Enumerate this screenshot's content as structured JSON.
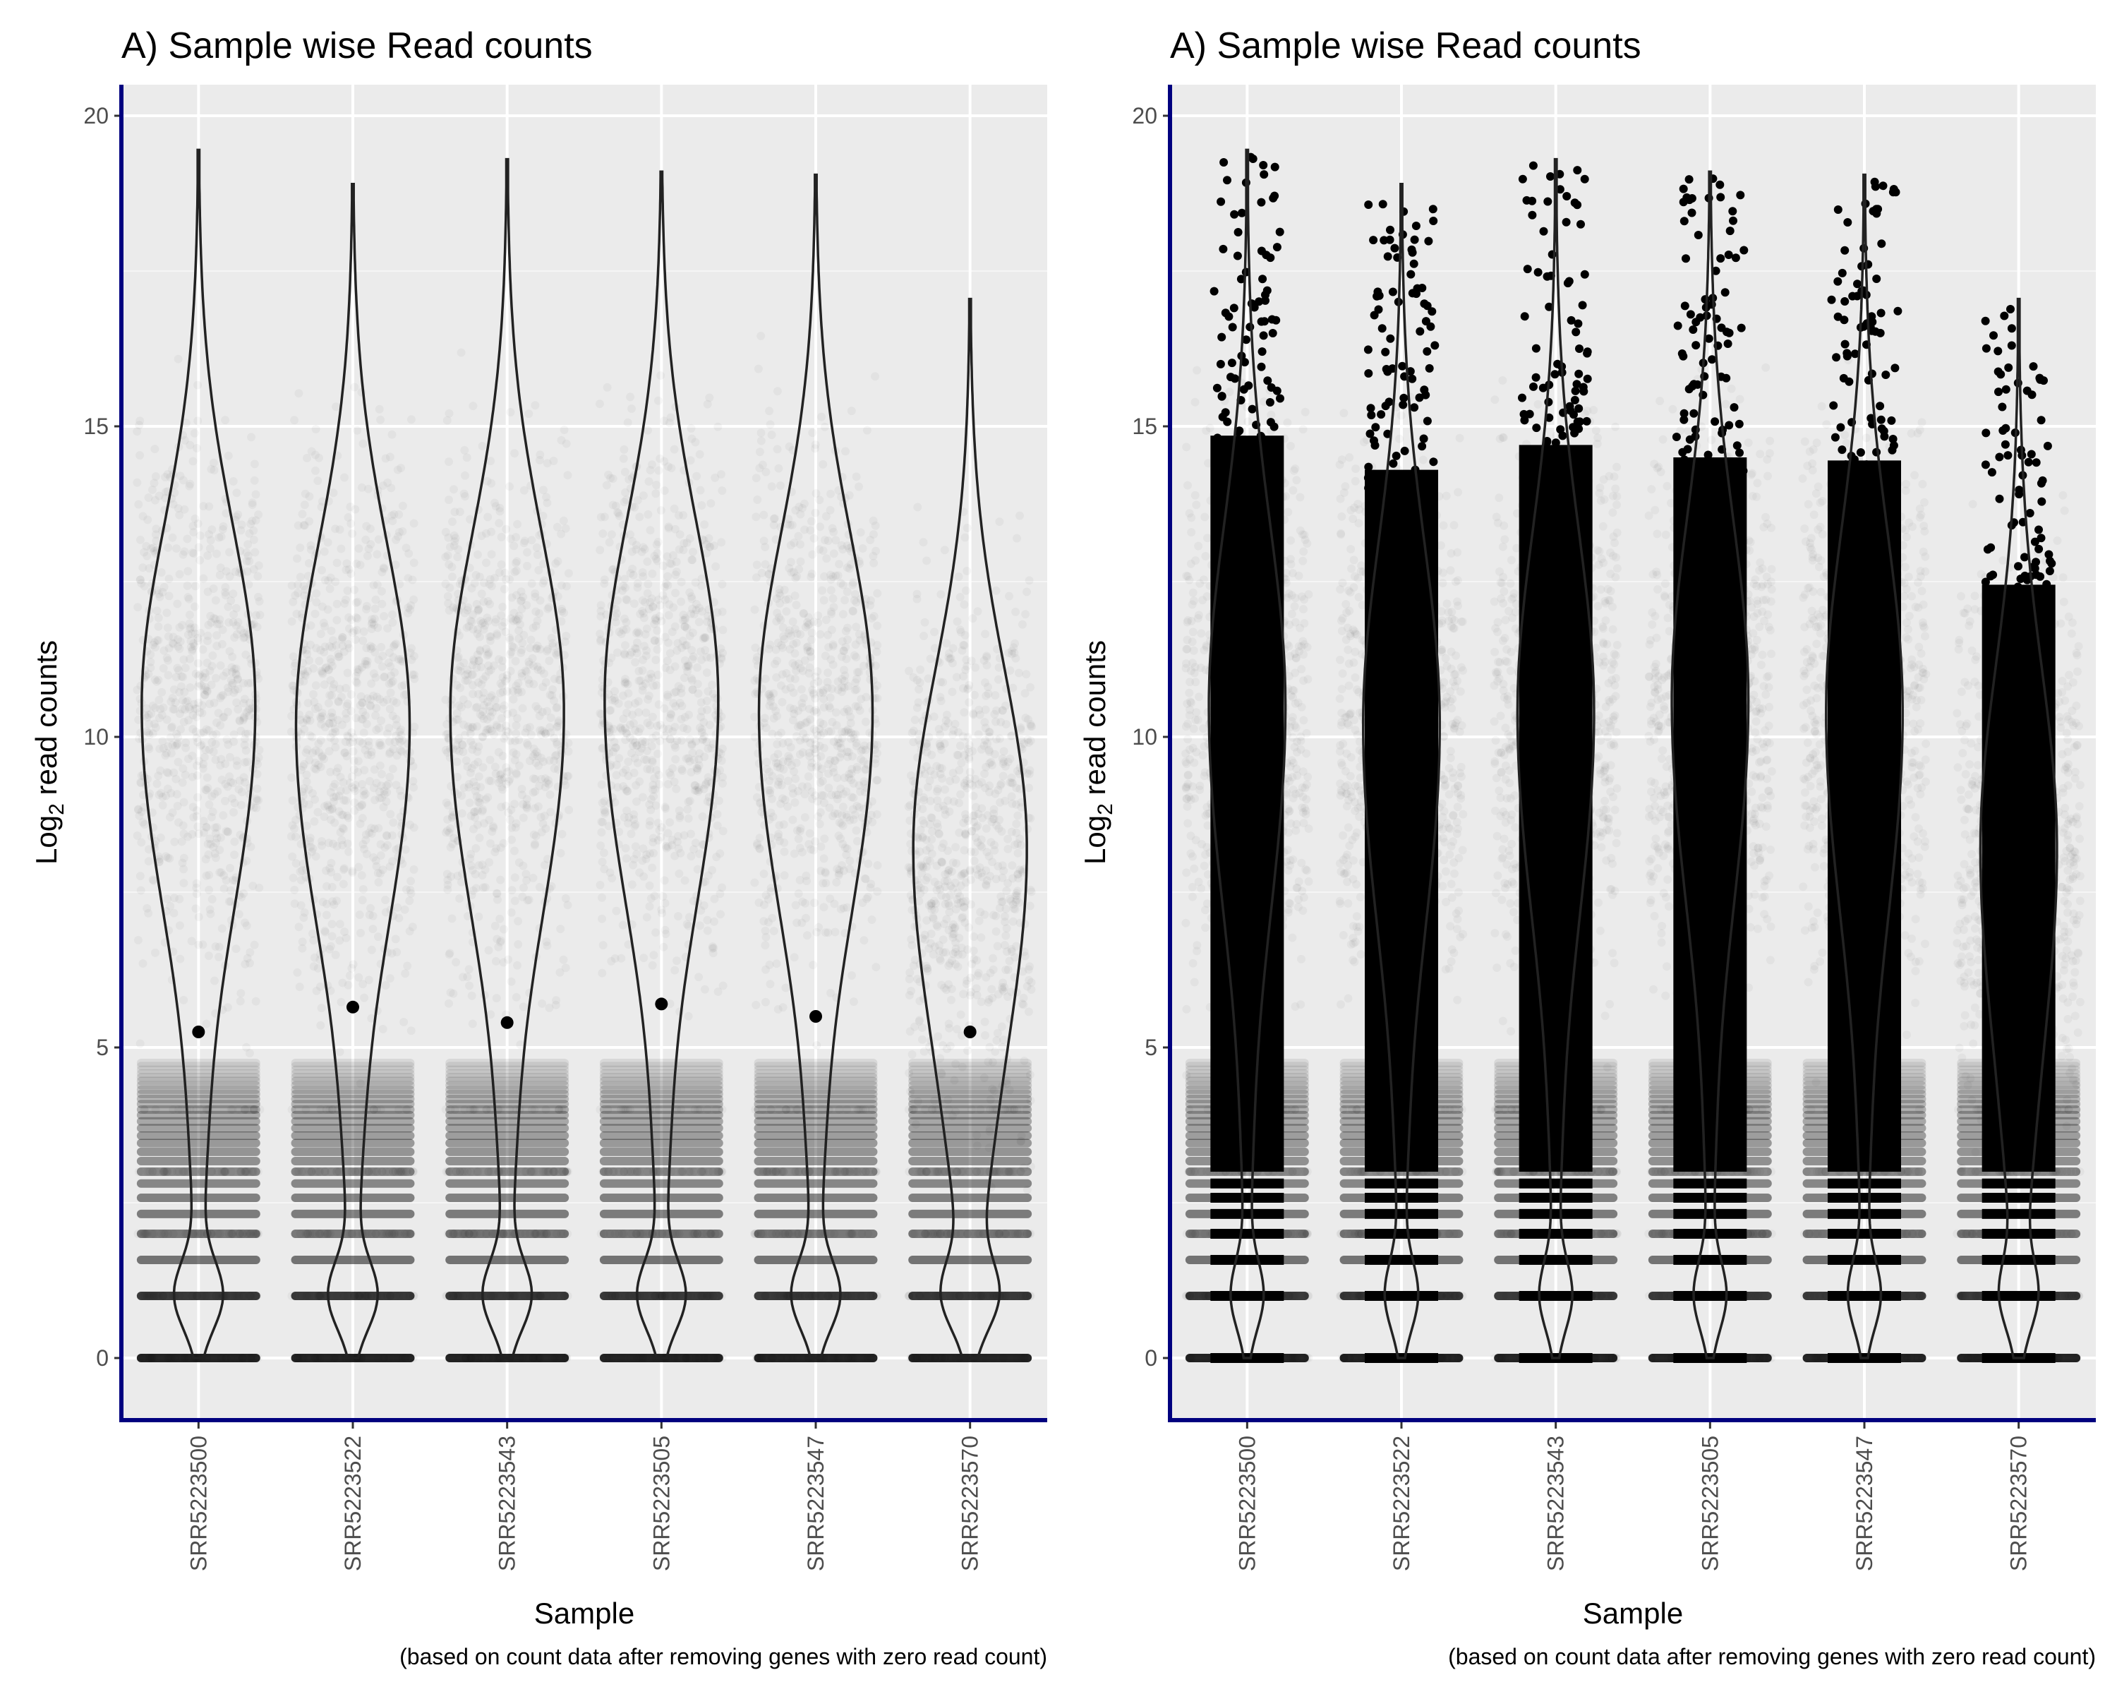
{
  "theme": {
    "panel_bg": "#ebebeb",
    "grid_major": "#ffffff",
    "grid_minor": "#f5f5f5",
    "axis_line": "#00007f",
    "point": "#000000",
    "violin_stroke": "#222222"
  },
  "chart_data": [
    {
      "type": "violin",
      "title": "A) Sample wise Read counts",
      "xlabel": "Sample",
      "ylabel_main": "Log",
      "ylabel_sub": "2",
      "ylabel_rest": " read counts",
      "caption": "(based on count data after removing genes with zero read count)",
      "ylim": [
        -1,
        20.5
      ],
      "yticks": [
        0,
        5,
        10,
        15,
        20
      ],
      "categories": [
        "SRR5223500",
        "SRR5223522",
        "SRR5223543",
        "SRR5223505",
        "SRR5223547",
        "SRR5223570"
      ],
      "overlay": "jittered points (low alpha) with median dot",
      "medians": [
        5.25,
        5.65,
        5.4,
        5.7,
        5.5,
        5.25
      ],
      "max": [
        19.45,
        18.9,
        19.3,
        19.1,
        19.05,
        17.05
      ],
      "density_modes": [
        10.5,
        10.2,
        10.4,
        10.6,
        10.4,
        8.2
      ],
      "grid": true,
      "legend": "none"
    },
    {
      "type": "violin",
      "title": "A) Sample wise Read counts",
      "xlabel": "Sample",
      "ylabel_main": "Log",
      "ylabel_sub": "2",
      "ylabel_rest": " read counts",
      "caption": "(based on count data after removing genes with zero read count)",
      "ylim": [
        -1,
        20.5
      ],
      "yticks": [
        0,
        5,
        10,
        15,
        20
      ],
      "categories": [
        "SRR5223500",
        "SRR5223522",
        "SRR5223543",
        "SRR5223505",
        "SRR5223547",
        "SRR5223570"
      ],
      "overlay": "jittered points (low alpha) with dense solid points",
      "max": [
        19.45,
        18.9,
        19.3,
        19.1,
        19.05,
        17.05
      ],
      "density_modes": [
        10.5,
        10.2,
        10.4,
        10.6,
        10.4,
        8.2
      ],
      "grid": true,
      "legend": "none"
    }
  ]
}
